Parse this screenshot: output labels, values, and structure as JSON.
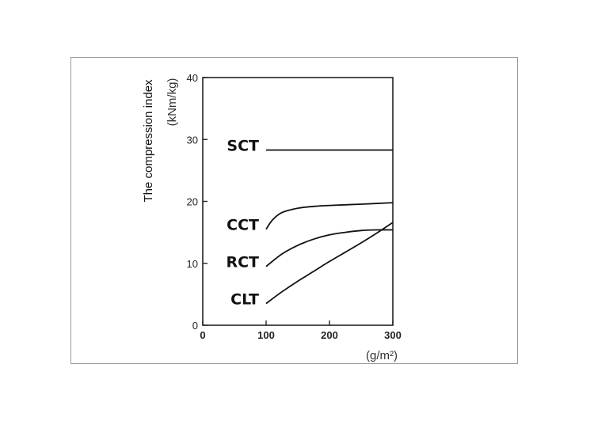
{
  "chart_data": {
    "type": "line",
    "title": "",
    "ylabel": "The compression index",
    "ylabel_unit": "(kNm/kg)",
    "xlabel": "(g/m²)",
    "xlim": [
      0,
      300
    ],
    "ylim": [
      0,
      40
    ],
    "xticks": [
      "0",
      "100",
      "200",
      "300"
    ],
    "yticks": [
      "0",
      "10",
      "20",
      "30",
      "40"
    ],
    "grid": false,
    "legend": "inline labels left of curves",
    "series": [
      {
        "name": "SCT",
        "x": [
          100,
          150,
          200,
          250,
          300
        ],
        "y": [
          28.3,
          28.3,
          28.3,
          28.3,
          28.3
        ]
      },
      {
        "name": "CCT",
        "x": [
          100,
          110,
          125,
          150,
          175,
          200,
          250,
          300
        ],
        "y": [
          15.5,
          17.0,
          18.2,
          18.9,
          19.2,
          19.35,
          19.55,
          19.8
        ]
      },
      {
        "name": "RCT",
        "x": [
          100,
          125,
          150,
          175,
          200,
          225,
          250,
          275,
          300
        ],
        "y": [
          9.5,
          11.5,
          12.9,
          13.9,
          14.6,
          15.0,
          15.3,
          15.4,
          15.4
        ]
      },
      {
        "name": "CLT",
        "x": [
          100,
          125,
          150,
          175,
          200,
          225,
          250,
          275,
          300
        ],
        "y": [
          3.5,
          5.4,
          7.1,
          8.7,
          10.3,
          11.8,
          13.3,
          14.9,
          16.6
        ]
      }
    ]
  }
}
